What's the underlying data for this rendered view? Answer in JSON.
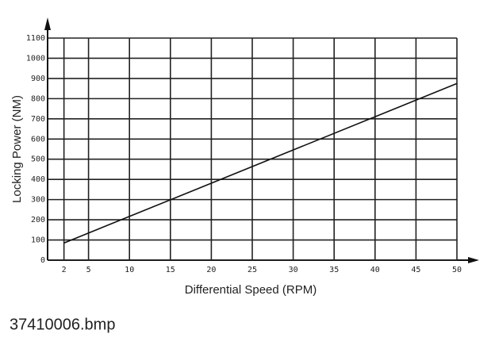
{
  "chart_data": {
    "type": "line",
    "x_label": "Differential Speed (RPM)",
    "y_label": "Locking Power (NM)",
    "x": [
      2,
      50
    ],
    "series": [
      {
        "color": "#111111",
        "values": [
          85,
          875
        ]
      }
    ],
    "xlim": [
      0,
      50
    ],
    "xticks": [
      2,
      5,
      10,
      15,
      20,
      25,
      30,
      35,
      40,
      45,
      50
    ],
    "ylim": [
      0,
      1100
    ],
    "yticks": [
      0,
      100,
      200,
      300,
      400,
      500,
      600,
      700,
      800,
      900,
      1000,
      1100
    ],
    "grid": true
  },
  "caption": "37410006.bmp"
}
